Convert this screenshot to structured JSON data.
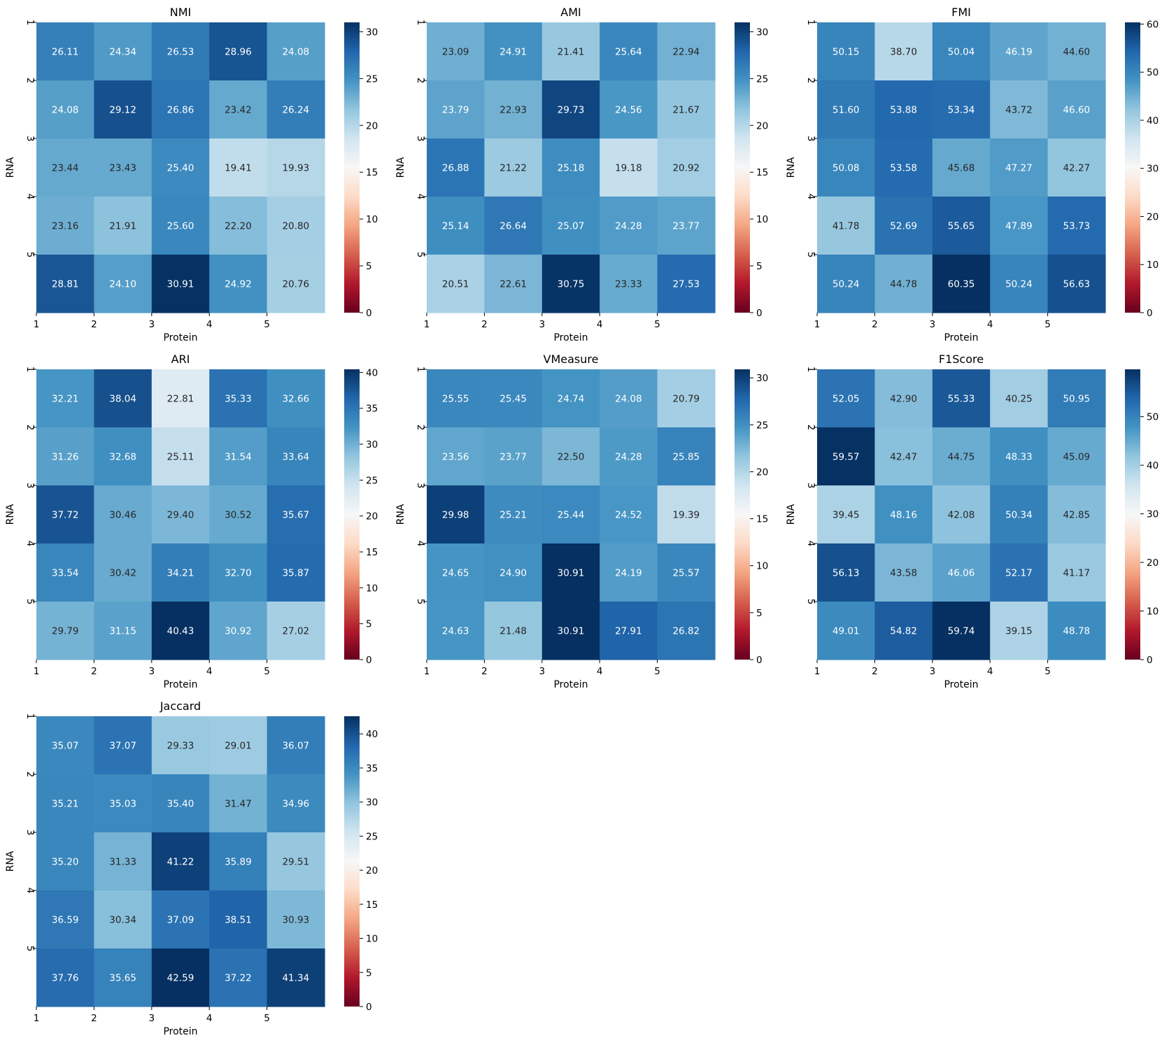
{
  "chart_data": [
    {
      "type": "heatmap",
      "title": "NMI",
      "xlabel": "Protein",
      "ylabel": "RNA",
      "x_ticks": [
        "1",
        "2",
        "3",
        "4",
        "5"
      ],
      "y_ticks": [
        "1",
        "2",
        "3",
        "4",
        "5"
      ],
      "colorbar_range": [
        0,
        31
      ],
      "colorbar_ticks": [
        "0",
        "5",
        "10",
        "15",
        "20",
        "25",
        "30"
      ],
      "values": [
        [
          26.11,
          24.34,
          26.53,
          28.96,
          24.08
        ],
        [
          24.08,
          29.12,
          26.86,
          23.42,
          26.24
        ],
        [
          23.44,
          23.43,
          25.4,
          19.41,
          19.93
        ],
        [
          23.16,
          21.91,
          25.6,
          22.2,
          20.8
        ],
        [
          28.81,
          24.1,
          30.91,
          24.92,
          20.76
        ]
      ]
    },
    {
      "type": "heatmap",
      "title": "AMI",
      "xlabel": "Protein",
      "ylabel": "RNA",
      "x_ticks": [
        "1",
        "2",
        "3",
        "4",
        "5"
      ],
      "y_ticks": [
        "1",
        "2",
        "3",
        "4",
        "5"
      ],
      "colorbar_range": [
        0,
        31
      ],
      "colorbar_ticks": [
        "0",
        "5",
        "10",
        "15",
        "20",
        "25",
        "30"
      ],
      "values": [
        [
          23.09,
          24.91,
          21.41,
          25.64,
          22.94
        ],
        [
          23.79,
          22.93,
          29.73,
          24.56,
          21.67
        ],
        [
          26.88,
          21.22,
          25.18,
          19.18,
          20.92
        ],
        [
          25.14,
          26.64,
          25.07,
          24.28,
          23.77
        ],
        [
          20.51,
          22.61,
          30.75,
          23.33,
          27.53
        ]
      ]
    },
    {
      "type": "heatmap",
      "title": "FMI",
      "xlabel": "Protein",
      "ylabel": "RNA",
      "x_ticks": [
        "1",
        "2",
        "3",
        "4",
        "5"
      ],
      "y_ticks": [
        "1",
        "2",
        "3",
        "4",
        "5"
      ],
      "colorbar_range": [
        0,
        60.35
      ],
      "colorbar_ticks": [
        "0",
        "10",
        "20",
        "30",
        "40",
        "50",
        "60"
      ],
      "values": [
        [
          50.15,
          38.7,
          50.04,
          46.19,
          44.6
        ],
        [
          51.6,
          53.88,
          53.34,
          43.72,
          46.6
        ],
        [
          50.08,
          53.58,
          45.68,
          47.27,
          42.27
        ],
        [
          41.78,
          52.69,
          55.65,
          47.89,
          53.73
        ],
        [
          50.24,
          44.78,
          60.35,
          50.24,
          56.63
        ]
      ]
    },
    {
      "type": "heatmap",
      "title": "ARI",
      "xlabel": "Protein",
      "ylabel": "RNA",
      "x_ticks": [
        "1",
        "2",
        "3",
        "4",
        "5"
      ],
      "y_ticks": [
        "1",
        "2",
        "3",
        "4",
        "5"
      ],
      "colorbar_range": [
        0,
        40.43
      ],
      "colorbar_ticks": [
        "0",
        "5",
        "10",
        "15",
        "20",
        "25",
        "30",
        "35",
        "40"
      ],
      "values": [
        [
          32.21,
          38.04,
          22.81,
          35.33,
          32.66
        ],
        [
          31.26,
          32.68,
          25.11,
          31.54,
          33.64
        ],
        [
          37.72,
          30.46,
          29.4,
          30.52,
          35.67
        ],
        [
          33.54,
          30.42,
          34.21,
          32.7,
          35.87
        ],
        [
          29.79,
          31.15,
          40.43,
          30.92,
          27.02
        ]
      ]
    },
    {
      "type": "heatmap",
      "title": "VMeasure",
      "xlabel": "Protein",
      "ylabel": "RNA",
      "x_ticks": [
        "1",
        "2",
        "3",
        "4",
        "5"
      ],
      "y_ticks": [
        "1",
        "2",
        "3",
        "4",
        "5"
      ],
      "colorbar_range": [
        0,
        30.91
      ],
      "colorbar_ticks": [
        "0",
        "5",
        "10",
        "15",
        "20",
        "25",
        "30"
      ],
      "values": [
        [
          25.55,
          25.45,
          24.74,
          24.08,
          20.79
        ],
        [
          23.56,
          23.77,
          22.5,
          24.28,
          25.85
        ],
        [
          29.98,
          25.21,
          25.44,
          24.52,
          19.39
        ],
        [
          24.65,
          24.9,
          30.91,
          24.19,
          25.57
        ],
        [
          24.63,
          21.48,
          30.91,
          27.91,
          26.82
        ]
      ]
    },
    {
      "type": "heatmap",
      "title": "F1Score",
      "xlabel": "Protein",
      "ylabel": "RNA",
      "x_ticks": [
        "1",
        "2",
        "3",
        "4",
        "5"
      ],
      "y_ticks": [
        "1",
        "2",
        "3",
        "4",
        "5"
      ],
      "colorbar_range": [
        0,
        59.74
      ],
      "colorbar_ticks": [
        "0",
        "10",
        "20",
        "30",
        "40",
        "50"
      ],
      "values": [
        [
          52.05,
          42.9,
          55.33,
          40.25,
          50.95
        ],
        [
          59.57,
          42.47,
          44.75,
          48.33,
          45.09
        ],
        [
          39.45,
          48.16,
          42.08,
          50.34,
          42.85
        ],
        [
          56.13,
          43.58,
          46.06,
          52.17,
          41.17
        ],
        [
          49.01,
          54.82,
          59.74,
          39.15,
          48.78
        ]
      ]
    },
    {
      "type": "heatmap",
      "title": "Jaccard",
      "xlabel": "Protein",
      "ylabel": "RNA",
      "x_ticks": [
        "1",
        "2",
        "3",
        "4",
        "5"
      ],
      "y_ticks": [
        "1",
        "2",
        "3",
        "4",
        "5"
      ],
      "colorbar_range": [
        0,
        42.59
      ],
      "colorbar_ticks": [
        "0",
        "5",
        "10",
        "15",
        "20",
        "25",
        "30",
        "35",
        "40"
      ],
      "values": [
        [
          35.07,
          37.07,
          29.33,
          29.01,
          36.07
        ],
        [
          35.21,
          35.03,
          35.4,
          31.47,
          34.96
        ],
        [
          35.2,
          31.33,
          41.22,
          35.89,
          29.51
        ],
        [
          36.59,
          30.34,
          37.09,
          38.51,
          30.93
        ],
        [
          37.76,
          35.65,
          42.59,
          37.22,
          41.34
        ]
      ]
    }
  ],
  "colormap": {
    "name": "RdBu",
    "stops": [
      "#67001f",
      "#b2182b",
      "#d6604d",
      "#f4a582",
      "#fddbc7",
      "#f7f7f7",
      "#d1e5f0",
      "#92c5de",
      "#4393c3",
      "#2166ac",
      "#053061"
    ],
    "text_dark": "#262626",
    "text_light": "#ffffff"
  }
}
